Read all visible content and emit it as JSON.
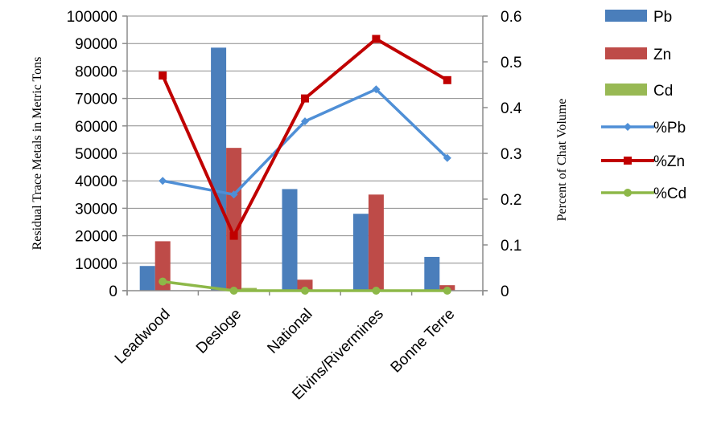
{
  "chart_data": {
    "type": "bar",
    "categories": [
      "Leadwood",
      "Desloge",
      "National",
      "Elvins/Rivermines",
      "Bonne Terre"
    ],
    "title": "",
    "xlabel": "",
    "ylabel": "Residual Trace Metals in Metric Tons",
    "y2label": "Percent of Chat Volume",
    "ylim": [
      0,
      100000
    ],
    "y2lim": [
      0,
      0.6
    ],
    "yticks": [
      0,
      10000,
      20000,
      30000,
      40000,
      50000,
      60000,
      70000,
      80000,
      90000,
      100000
    ],
    "y2ticks": [
      0,
      0.1,
      0.2,
      0.3,
      0.4,
      0.5,
      0.6
    ],
    "ytick_labels": [
      "0",
      "10000",
      "20000",
      "30000",
      "40000",
      "50000",
      "60000",
      "70000",
      "80000",
      "90000",
      "100000"
    ],
    "y2tick_labels": [
      "0",
      "0.1",
      "0.2",
      "0.3",
      "0.4",
      "0.5",
      "0.6"
    ],
    "grid": "horizontal",
    "legend_position": "right",
    "bar_series": [
      {
        "name": "Pb",
        "color": "#4a7ebb",
        "values": [
          9000,
          88500,
          37000,
          28000,
          12300
        ]
      },
      {
        "name": "Zn",
        "color": "#be4b48",
        "values": [
          18000,
          52000,
          4000,
          35000,
          2000
        ]
      },
      {
        "name": "Cd",
        "color": "#98b954",
        "values": [
          0,
          1000,
          0,
          0,
          0
        ]
      }
    ],
    "line_series": [
      {
        "name": "%Pb",
        "color": "#4f8fd6",
        "marker": "diamond",
        "values": [
          0.24,
          0.21,
          0.37,
          0.44,
          0.29
        ]
      },
      {
        "name": "%Zn",
        "color": "#c00000",
        "marker": "square",
        "values": [
          0.47,
          0.12,
          0.42,
          0.55,
          0.46
        ]
      },
      {
        "name": "%Cd",
        "color": "#8db848",
        "marker": "circle",
        "values": [
          0.02,
          0.0,
          0.0,
          0.0,
          0.0
        ]
      }
    ]
  }
}
